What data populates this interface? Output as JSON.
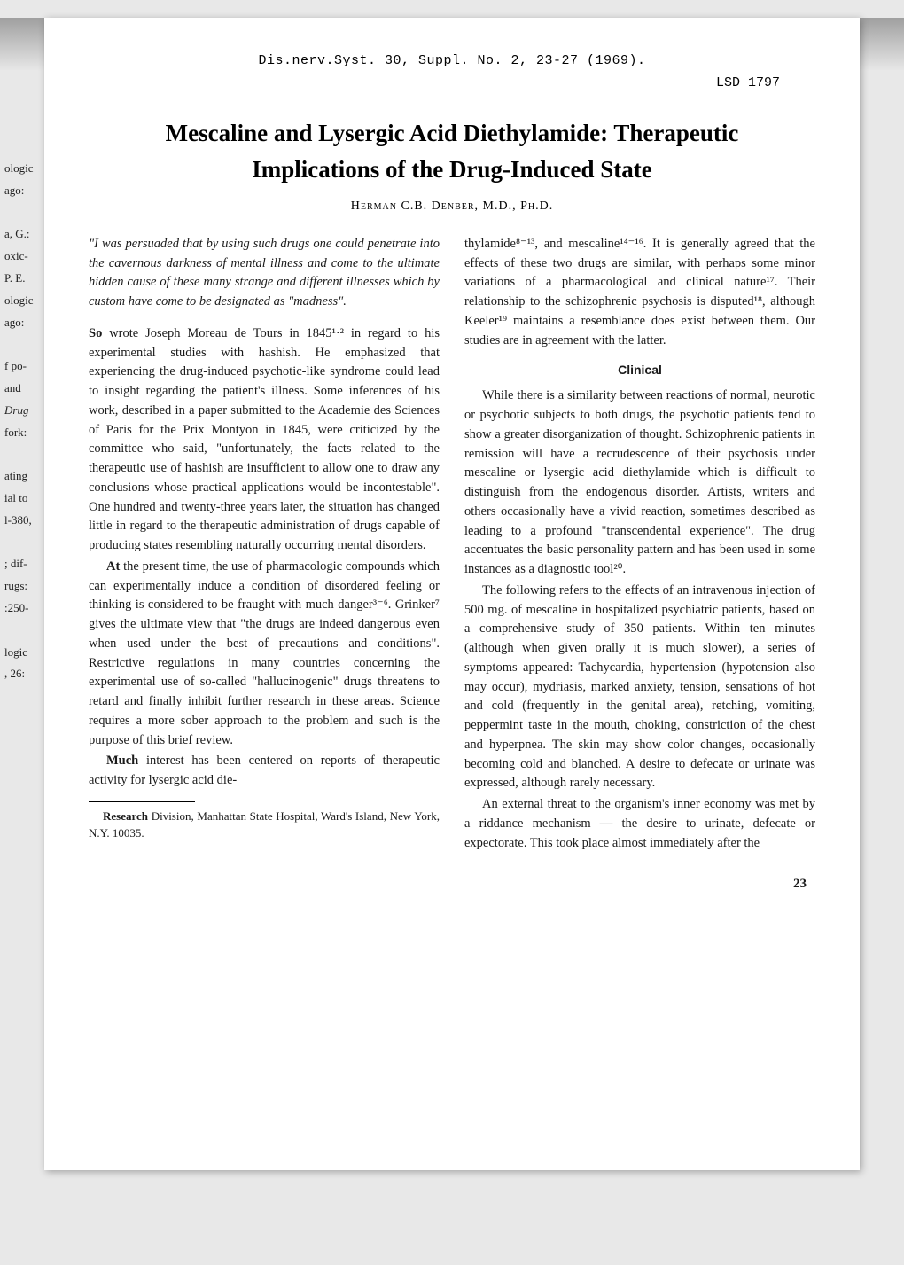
{
  "left_fragments": [
    "ologic",
    "ago:",
    "",
    "a, G.:",
    "oxic-",
    "P. E.",
    "ologic",
    "ago:",
    "",
    "f po-",
    "and",
    "Drug",
    "fork:",
    "",
    "ating",
    "ial to",
    "l-380,",
    "",
    "; dif-",
    "rugs:",
    ":250-",
    "",
    "logic",
    ", 26:"
  ],
  "header": {
    "citation": "Dis.nerv.Syst. 30, Suppl. No. 2, 23-27 (1969).",
    "ref_id": "LSD 1797"
  },
  "title_line1": "Mescaline and Lysergic Acid Diethylamide: Therapeutic",
  "title_line2": "Implications of the Drug-Induced State",
  "author": "Herman C.B. Denber, M.D., Ph.D.",
  "quote": "\"I was persuaded that by using such drugs one could penetrate into the cavernous darkness of mental illness and come to the ultimate hidden cause of these many strange and different illnesses which by custom have come to be designated as \"madness\".",
  "col1": {
    "p1_bold": "So",
    "p1": " wrote Joseph Moreau de Tours in 1845¹·² in regard to his experimental studies with hashish. He emphasized that experiencing the drug-induced psychotic-like syndrome could lead to insight regarding the patient's illness. Some inferences of his work, described in a paper submitted to the Academie des Sciences of Paris for the Prix Montyon in 1845, were criticized by the committee who said, \"unfortunately, the facts related to the therapeutic use of hashish are insufficient to allow one to draw any conclusions whose practical applications would be incontestable\". One hundred and twenty-three years later, the situation has changed little in regard to the therapeutic administration of drugs capable of producing states resembling naturally occurring mental disorders.",
    "p2_bold": "At",
    "p2": " the present time, the use of pharmacologic compounds which can experimentally induce a condition of disordered feeling or thinking is considered to be fraught with much danger³⁻⁶. Grinker⁷ gives the ultimate view that \"the drugs are indeed dangerous even when used under the best of precautions and conditions\". Restrictive regulations in many countries concerning the experimental use of so-called \"hallucinogenic\" drugs threatens to retard and finally inhibit further research in these areas. Science requires a more sober approach to the problem and such is the purpose of this brief review.",
    "p3_bold": "Much",
    "p3": " interest has been centered on reports of therapeutic activity for lysergic acid die-"
  },
  "footnote": {
    "bold": "Research",
    "text": " Division, Manhattan State Hospital, Ward's Island, New York, N.Y. 10035."
  },
  "col2": {
    "p1": "thylamide⁸⁻¹³, and mescaline¹⁴⁻¹⁶. It is generally agreed that the effects of these two drugs are similar, with perhaps some minor variations of a pharmacological and clinical nature¹⁷. Their relationship to the schizophrenic psychosis is disputed¹⁸, although Keeler¹⁹ maintains a resemblance does exist between them. Our studies are in agreement with the latter.",
    "section": "Clinical",
    "p2": "While there is a similarity between reactions of normal, neurotic or psychotic subjects to both drugs, the psychotic patients tend to show a greater disorganization of thought. Schizophrenic patients in remission will have a recrudescence of their psychosis under mescaline or lysergic acid diethylamide which is difficult to distinguish from the endogenous disorder. Artists, writers and others occasionally have a vivid reaction, sometimes described as leading to a profound \"transcendental experience\". The drug accentuates the basic personality pattern and has been used in some instances as a diagnostic tool²⁰.",
    "p3": "The following refers to the effects of an intravenous injection of 500 mg. of mescaline in hospitalized psychiatric patients, based on a comprehensive study of 350 patients. Within ten minutes (although when given orally it is much slower), a series of symptoms appeared: Tachycardia, hypertension (hypotension also may occur), mydriasis, marked anxiety, tension, sensations of hot and cold (frequently in the genital area), retching, vomiting, peppermint taste in the mouth, choking, constriction of the chest and hyperpnea. The skin may show color changes, occasionally becoming cold and blanched. A desire to defecate or urinate was expressed, although rarely necessary.",
    "p4": "An external threat to the organism's inner economy was met by a riddance mechanism — the desire to urinate, defecate or expectorate. This took place almost immediately after the"
  },
  "page_number": "23"
}
